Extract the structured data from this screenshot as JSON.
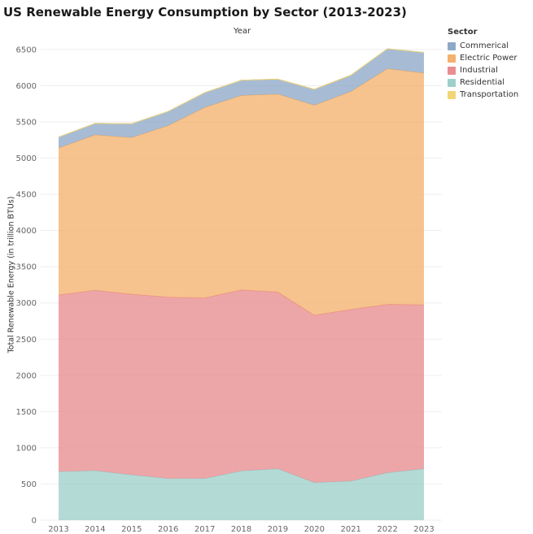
{
  "chart_data": {
    "type": "area",
    "stacked": true,
    "title": "US Renewable Energy Consumption by Sector (2013-2023)",
    "xlabel": "Year",
    "ylabel": "Total Renewable Energy (in trillion BTUs)",
    "ylim": [
      0,
      6600
    ],
    "yticks": [
      0,
      500,
      1000,
      1500,
      2000,
      2500,
      3000,
      3500,
      4000,
      4500,
      5000,
      5500,
      6000,
      6500
    ],
    "categories": [
      "2013",
      "2014",
      "2015",
      "2016",
      "2017",
      "2018",
      "2019",
      "2020",
      "2021",
      "2022",
      "2023"
    ],
    "legend_title": "Sector",
    "legend_position": "top-right",
    "series": [
      {
        "name": "Residential",
        "color": "#9fcfcb",
        "values": [
          670,
          685,
          625,
          575,
          575,
          680,
          710,
          520,
          540,
          655,
          710
        ]
      },
      {
        "name": "Industrial",
        "color": "#e88d90",
        "values": [
          2440,
          2490,
          2495,
          2505,
          2495,
          2500,
          2440,
          2310,
          2370,
          2325,
          2265
        ]
      },
      {
        "name": "Electric Power",
        "color": "#f4b26e",
        "values": [
          2030,
          2145,
          2165,
          2370,
          2630,
          2685,
          2735,
          2900,
          3010,
          3255,
          3200
        ]
      },
      {
        "name": "Commerical",
        "color": "#8ea9c8",
        "values": [
          150,
          160,
          190,
          195,
          205,
          210,
          205,
          220,
          225,
          275,
          285
        ]
      },
      {
        "name": "Transportation",
        "color": "#f2d577",
        "values": [
          0,
          0,
          0,
          0,
          0,
          0,
          0,
          0,
          0,
          0,
          0
        ]
      }
    ],
    "legend_entries": [
      {
        "name": "Commerical",
        "color": "#8ea9c8"
      },
      {
        "name": "Electric Power",
        "color": "#f4b26e"
      },
      {
        "name": "Industrial",
        "color": "#e88d90"
      },
      {
        "name": "Residential",
        "color": "#9fcfcb"
      },
      {
        "name": "Transportation",
        "color": "#f2d577"
      }
    ]
  }
}
